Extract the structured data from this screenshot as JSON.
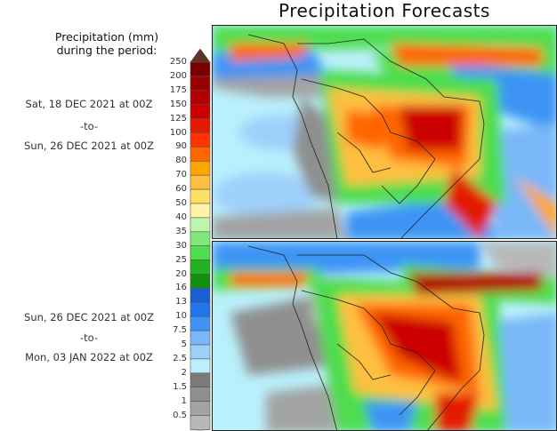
{
  "title": "Precipitation Forecasts",
  "legend": {
    "heading_line1": "Precipitation (mm)",
    "heading_line2": "during the period:",
    "ticks": [
      "250",
      "200",
      "175",
      "150",
      "125",
      "100",
      "90",
      "80",
      "70",
      "60",
      "50",
      "40",
      "35",
      "30",
      "25",
      "20",
      "16",
      "13",
      "10",
      "7.5",
      "5",
      "2.5",
      "2",
      "1.5",
      "1",
      "0.5"
    ],
    "colors": [
      "#7a0000",
      "#990000",
      "#b30000",
      "#cc0000",
      "#e31a00",
      "#ff3300",
      "#ff6600",
      "#ffa500",
      "#ffbf40",
      "#ffe066",
      "#fff3a8",
      "#c0f5b0",
      "#7fe879",
      "#4ddd4d",
      "#22b322",
      "#118f11",
      "#1a5fd0",
      "#1f74f0",
      "#3d94f5",
      "#7ab7f9",
      "#9fd0fb",
      "#b9f0fb",
      "#7a7a7a",
      "#8f8f8f",
      "#a3a3a3",
      "#b8b8b8"
    ],
    "over_color": "#5e3426"
  },
  "periods": [
    {
      "start": "Sat, 18 DEC 2021 at 00Z",
      "sep": "-to-",
      "end": "Sun, 26 DEC 2021 at 00Z"
    },
    {
      "start": "Sun, 26 DEC 2021 at 00Z",
      "sep": "-to-",
      "end": "Mon, 03 JAN 2022 at 00Z"
    }
  ]
}
